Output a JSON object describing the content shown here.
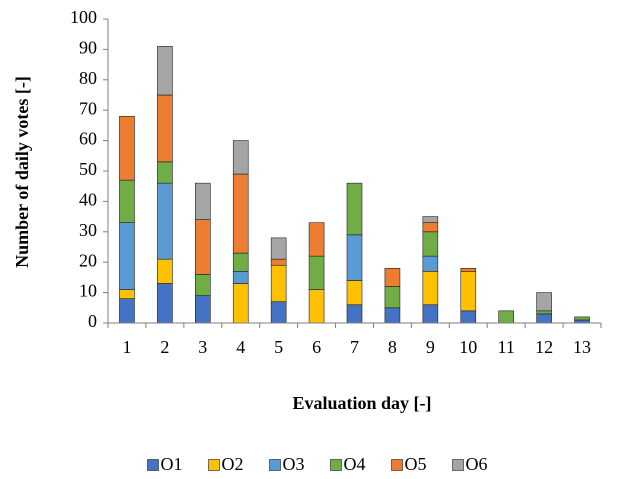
{
  "chart_data": {
    "type": "bar",
    "stacked": true,
    "title": "",
    "xlabel": "Evaluation day [-]",
    "ylabel": "Number of daily votes [-]",
    "ylim": [
      0,
      100
    ],
    "yticks": [
      0,
      10,
      20,
      30,
      40,
      50,
      60,
      70,
      80,
      90,
      100
    ],
    "grid": false,
    "legend_position": "bottom",
    "categories": [
      "1",
      "2",
      "3",
      "4",
      "5",
      "6",
      "7",
      "8",
      "9",
      "10",
      "11",
      "12",
      "13"
    ],
    "series": [
      {
        "name": "O1",
        "color": "#4472c4",
        "values": [
          8,
          13,
          9,
          0,
          7,
          0,
          6,
          5,
          6,
          4,
          0,
          3,
          1
        ]
      },
      {
        "name": "O2",
        "color": "#ffc000",
        "values": [
          3,
          8,
          0,
          13,
          12,
          11,
          8,
          0,
          11,
          13,
          0,
          0,
          0
        ]
      },
      {
        "name": "O3",
        "color": "#5b9bd5",
        "values": [
          22,
          25,
          0,
          4,
          0,
          0,
          15,
          0,
          5,
          0,
          0,
          0,
          0
        ]
      },
      {
        "name": "O4",
        "color": "#70ad47",
        "values": [
          14,
          7,
          7,
          6,
          0,
          11,
          17,
          7,
          8,
          0,
          4,
          1,
          1
        ]
      },
      {
        "name": "O5",
        "color": "#ed7d31",
        "values": [
          21,
          22,
          18,
          26,
          2,
          11,
          0,
          6,
          3,
          1,
          0,
          0,
          0
        ]
      },
      {
        "name": "O6",
        "color": "#a5a5a5",
        "values": [
          0,
          16,
          12,
          11,
          7,
          0,
          0,
          0,
          2,
          0,
          0,
          6,
          0
        ]
      }
    ]
  }
}
